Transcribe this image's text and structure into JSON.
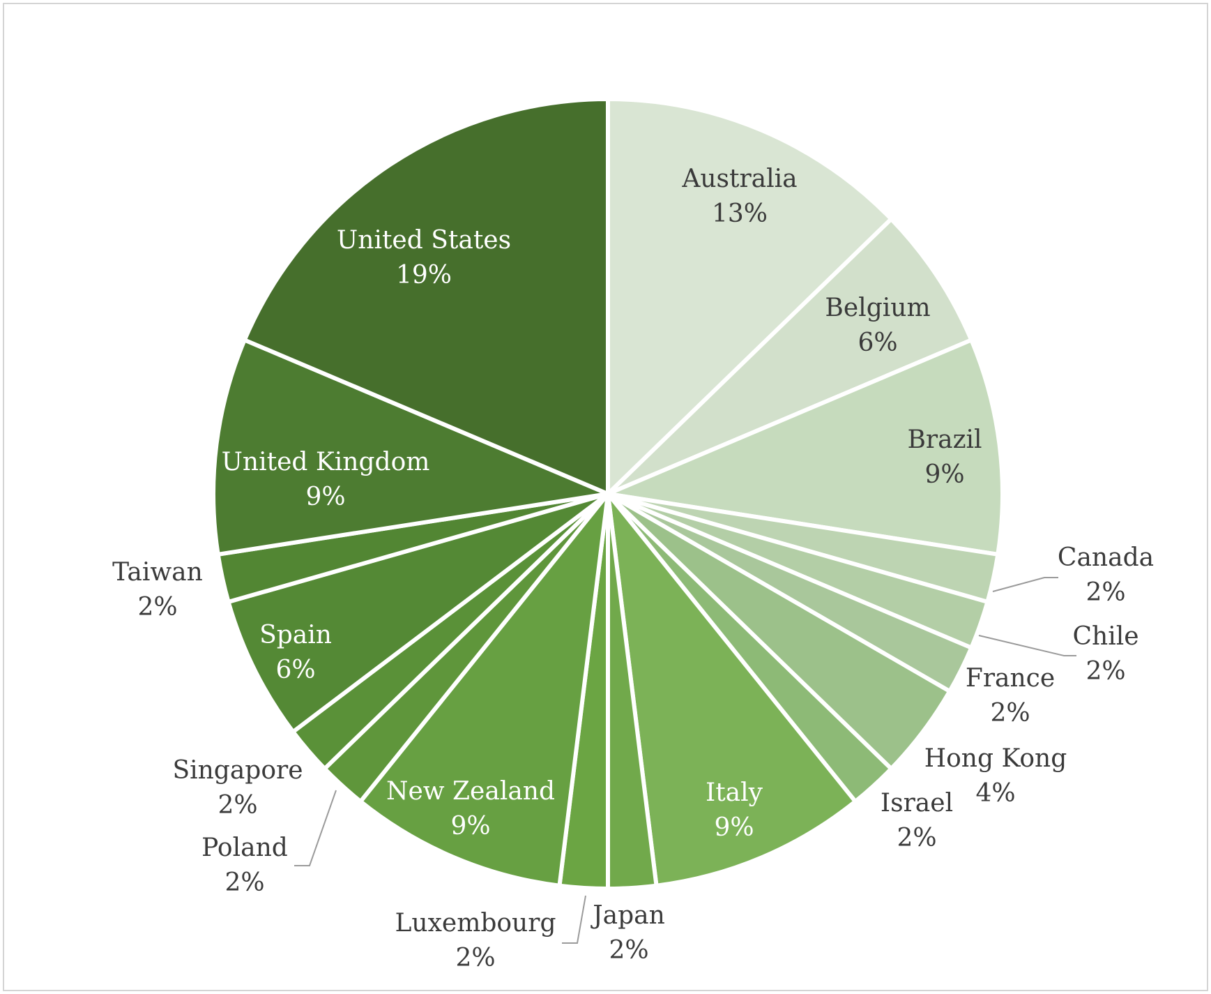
{
  "chart_data": {
    "type": "pie",
    "slices": [
      {
        "label": "Australia",
        "value": 13,
        "value_label": "13%",
        "color": "#d9e5d3"
      },
      {
        "label": "Belgium",
        "value": 6,
        "value_label": "6%",
        "color": "#d2e0cb"
      },
      {
        "label": "Brazil",
        "value": 9,
        "value_label": "9%",
        "color": "#c6dbbd"
      },
      {
        "label": "Canada",
        "value": 2,
        "value_label": "2%",
        "color": "#bdd4b2"
      },
      {
        "label": "Chile",
        "value": 2,
        "value_label": "2%",
        "color": "#b3ce a6"
      },
      {
        "label": "France",
        "value": 2,
        "value_label": "2%",
        "color": "#a9c79b"
      },
      {
        "label": "Hong Kong",
        "value": 4,
        "value_label": "4%",
        "color": "#9cc18a"
      },
      {
        "label": "Israel",
        "value": 2,
        "value_label": "2%",
        "color": "#8dba76"
      },
      {
        "label": "Italy",
        "value": 9,
        "value_label": "9%",
        "color": "#7cb257"
      },
      {
        "label": "Japan",
        "value": 2,
        "value_label": "2%",
        "color": "#71a94b"
      },
      {
        "label": "Luxembourg",
        "value": 2,
        "value_label": "2%",
        "color": "#6ba543"
      },
      {
        "label": "New Zealand",
        "value": 9,
        "value_label": "9%",
        "color": "#67a042"
      },
      {
        "label": "Poland",
        "value": 2,
        "value_label": "2%",
        "color": "#5f963b"
      },
      {
        "label": "Singapore",
        "value": 2,
        "value_label": "2%",
        "color": "#5a9138"
      },
      {
        "label": "Spain",
        "value": 6,
        "value_label": "6%",
        "color": "#548935"
      },
      {
        "label": "Taiwan",
        "value": 2,
        "value_label": "2%",
        "color": "#528633"
      },
      {
        "label": "United Kingdom",
        "value": 9,
        "value_label": "9%",
        "color": "#4d7c31"
      },
      {
        "label": "United States",
        "value": 19,
        "value_label": "19%",
        "color": "#466f2c"
      }
    ]
  }
}
